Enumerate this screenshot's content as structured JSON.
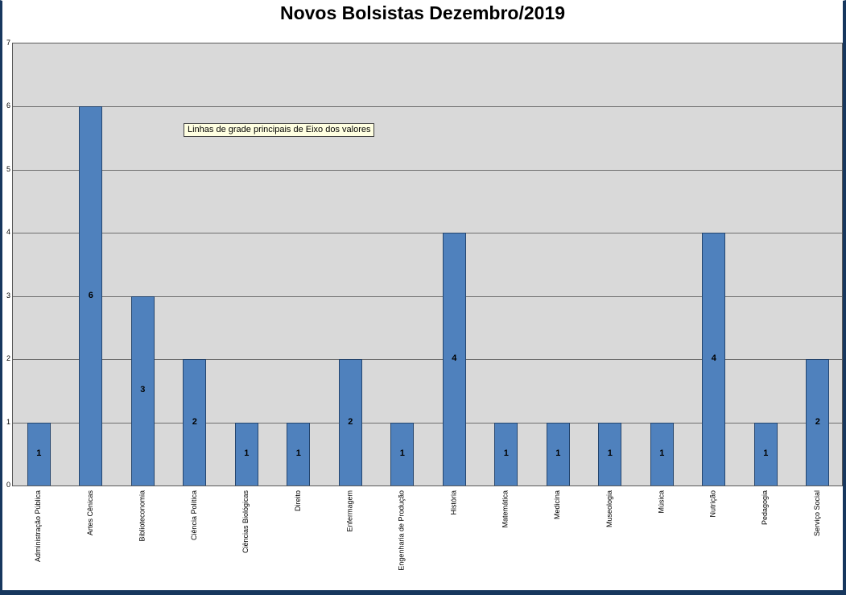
{
  "page": {
    "title": "Novos Bolsistas Dezembro/2019"
  },
  "tooltip": {
    "text": "Linhas de grade principais de Eixo dos valores"
  },
  "chart_data": {
    "type": "bar",
    "title": "Novos Bolsistas Dezembro/2019",
    "categories": [
      "Administração Pública",
      "Artes Cênicas",
      "Biblioteconomia",
      "Ciência Política",
      "Ciências Biológicas",
      "Direito",
      "Enfermagem",
      "Engenharia de Produção",
      "História",
      "Matemática",
      "Medicina",
      "Museologia",
      "Música",
      "Nutrição",
      "Pedagogia",
      "Serviço Social"
    ],
    "values": [
      1,
      6,
      3,
      2,
      1,
      1,
      2,
      1,
      4,
      1,
      1,
      1,
      1,
      4,
      1,
      2
    ],
    "data_labels": [
      1,
      6,
      3,
      2,
      1,
      1,
      2,
      1,
      4,
      1,
      1,
      1,
      1,
      4,
      1,
      2
    ],
    "xlabel": "",
    "ylabel": "",
    "ylim": [
      0,
      7
    ],
    "yticks": [
      0,
      1,
      2,
      3,
      4,
      5,
      6,
      7
    ],
    "grid": true,
    "legend": false,
    "bar_color": "#4F81BD",
    "bar_border_color": "#24456E",
    "plot_bg": "#D9D9D9",
    "gridline_color": "#6E6E6E"
  }
}
